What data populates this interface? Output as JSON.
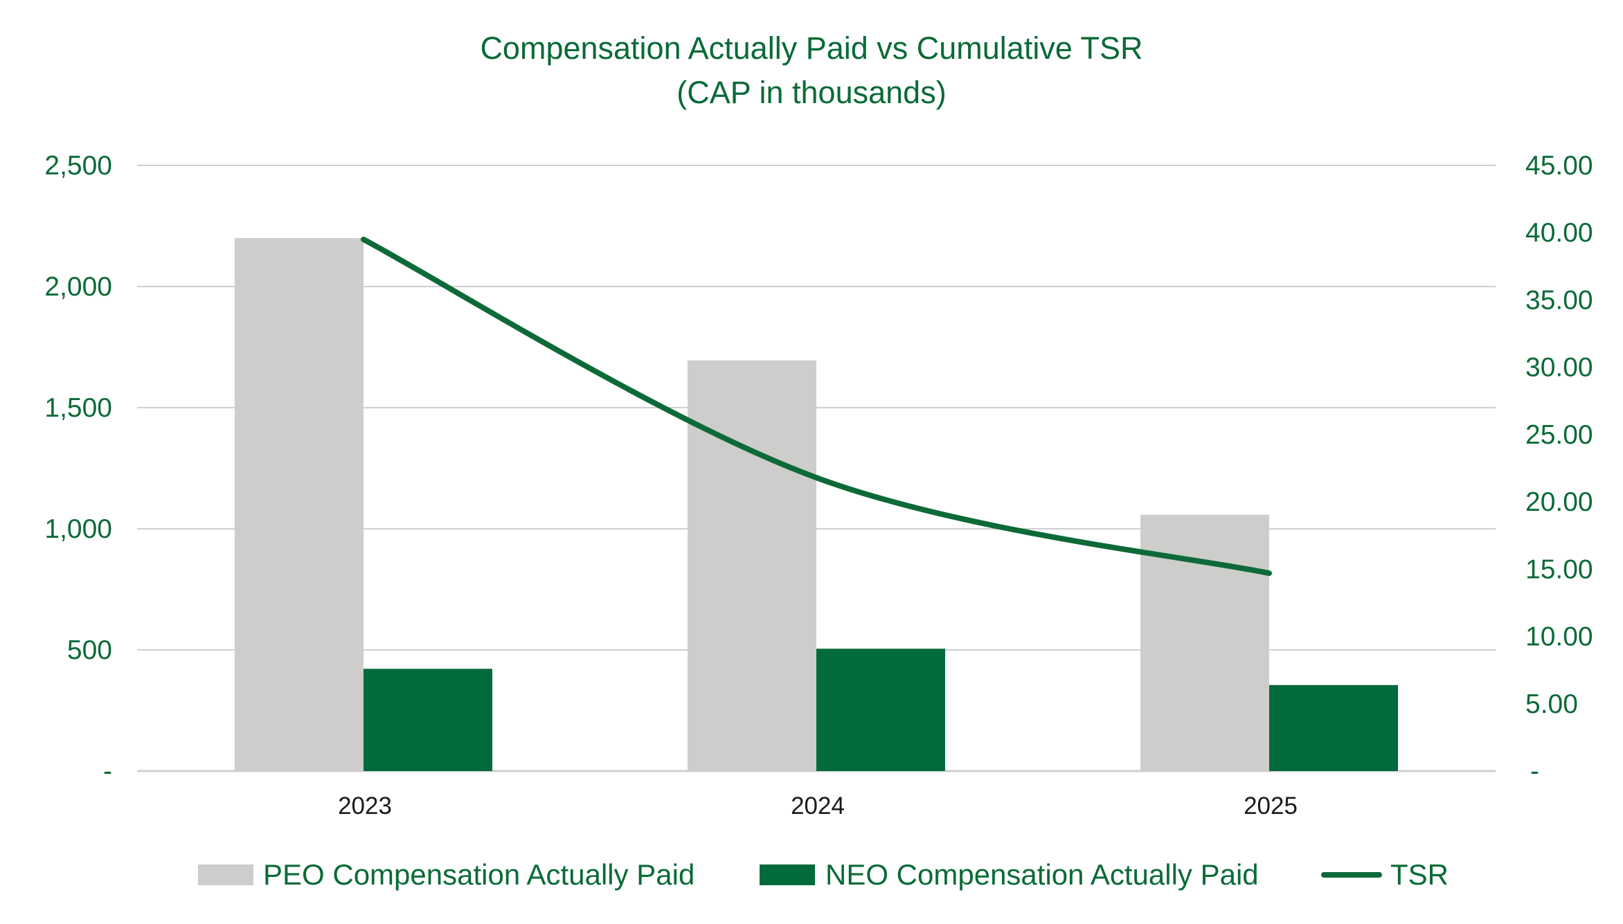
{
  "chart_data": {
    "type": "bar+line",
    "title": "Compensation Actually Paid vs Cumulative TSR",
    "subtitle": "(CAP in thousands)",
    "categories": [
      "2023",
      "2024",
      "2025"
    ],
    "series": [
      {
        "name": "PEO Compensation Actually Paid",
        "type": "bar",
        "axis": "left",
        "color": "#cdcdcb",
        "values": [
          2200,
          1695,
          1058
        ]
      },
      {
        "name": "NEO Compensation Actually Paid",
        "type": "bar",
        "axis": "left",
        "color": "#036a3b",
        "values": [
          422,
          505,
          355
        ]
      },
      {
        "name": "TSR",
        "type": "line",
        "axis": "right",
        "color": "#0d6a38",
        "values": [
          39.5,
          21.8,
          14.7
        ]
      }
    ],
    "y_left": {
      "min": 0,
      "max": 2500,
      "ticks": [
        0,
        500,
        1000,
        1500,
        2000,
        2500
      ],
      "tick_labels": [
        "-",
        "500",
        "1,000",
        "1,500",
        "2,000",
        "2,500"
      ]
    },
    "y_right": {
      "min": 0,
      "max": 45,
      "ticks": [
        0,
        5,
        10,
        15,
        20,
        25,
        30,
        35,
        40,
        45
      ],
      "tick_labels": [
        "-",
        "5.00",
        "10.00",
        "15.00",
        "20.00",
        "25.00",
        "30.00",
        "35.00",
        "40.00",
        "45.00"
      ]
    },
    "grid": true,
    "legend_position": "bottom"
  }
}
